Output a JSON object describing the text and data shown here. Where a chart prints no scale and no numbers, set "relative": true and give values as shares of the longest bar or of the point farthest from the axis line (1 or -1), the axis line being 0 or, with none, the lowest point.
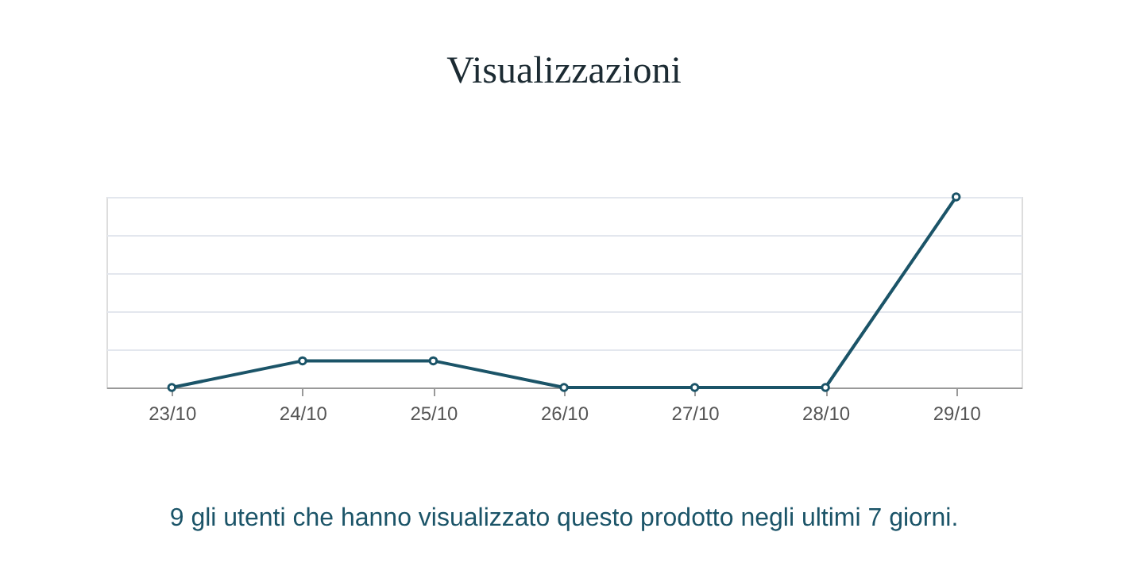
{
  "chart_data": {
    "type": "line",
    "title": "Visualizzazioni",
    "categories": [
      "23/10",
      "24/10",
      "25/10",
      "26/10",
      "27/10",
      "28/10",
      "29/10"
    ],
    "series": [
      {
        "color": "#1b5468",
        "values": [
          0,
          0.14,
          0.14,
          0,
          0,
          0,
          1
        ]
      }
    ],
    "relative": true,
    "grid": "y",
    "marker": "circle",
    "line_style": "solid",
    "annotations": [
      "9 gli utenti che hanno visualizzato questo prodotto negli ultimi 7 giorni."
    ]
  }
}
